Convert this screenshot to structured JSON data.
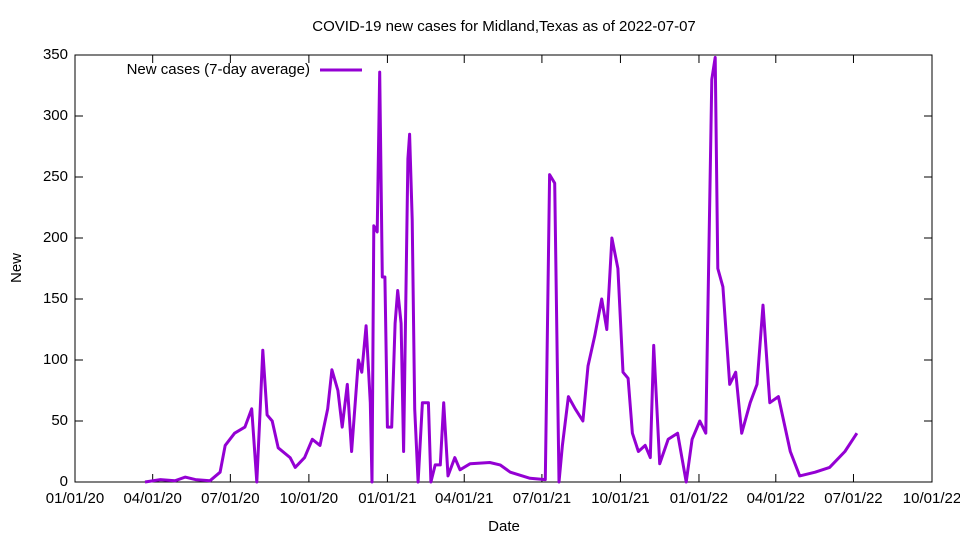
{
  "chart_data": {
    "type": "line",
    "title": "COVID-19 new cases for Midland,Texas as of 2022-07-07",
    "x_label": "Date",
    "y_label": "New",
    "legend_position": "top-left",
    "x": [
      "2020-03-23",
      "2020-04-10",
      "2020-04-27",
      "2020-05-09",
      "2020-05-21",
      "2020-06-07",
      "2020-06-19",
      "2020-06-25",
      "2020-07-06",
      "2020-07-18",
      "2020-07-26",
      "2020-08-01",
      "2020-08-05",
      "2020-08-08",
      "2020-08-13",
      "2020-08-19",
      "2020-08-26",
      "2020-09-09",
      "2020-09-15",
      "2020-09-26",
      "2020-10-05",
      "2020-10-14",
      "2020-10-23",
      "2020-10-28",
      "2020-11-04",
      "2020-11-09",
      "2020-11-15",
      "2020-11-20",
      "2020-11-28",
      "2020-12-02",
      "2020-12-07",
      "2020-12-12",
      "2020-12-14",
      "2020-12-16",
      "2020-12-20",
      "2020-12-23",
      "2020-12-26",
      "2020-12-29",
      "2021-01-01",
      "2021-01-06",
      "2021-01-10",
      "2021-01-13",
      "2021-01-17",
      "2021-01-20",
      "2021-01-25",
      "2021-01-27",
      "2021-01-30",
      "2021-02-02",
      "2021-02-06",
      "2021-02-11",
      "2021-02-18",
      "2021-02-21",
      "2021-02-26",
      "2021-03-04",
      "2021-03-08",
      "2021-03-13",
      "2021-03-21",
      "2021-03-27",
      "2021-04-08",
      "2021-05-01",
      "2021-05-13",
      "2021-05-25",
      "2021-06-17",
      "2021-07-05",
      "2021-07-10",
      "2021-07-16",
      "2021-07-21",
      "2021-07-25",
      "2021-08-01",
      "2021-08-09",
      "2021-08-18",
      "2021-08-24",
      "2021-09-01",
      "2021-09-09",
      "2021-09-15",
      "2021-09-21",
      "2021-09-28",
      "2021-10-04",
      "2021-10-10",
      "2021-10-15",
      "2021-10-22",
      "2021-10-30",
      "2021-11-05",
      "2021-11-09",
      "2021-11-16",
      "2021-11-26",
      "2021-12-07",
      "2021-12-17",
      "2021-12-24",
      "2022-01-02",
      "2022-01-09",
      "2022-01-16",
      "2022-01-20",
      "2022-01-23",
      "2022-01-29",
      "2022-02-06",
      "2022-02-13",
      "2022-02-20",
      "2022-03-02",
      "2022-03-10",
      "2022-03-17",
      "2022-03-25",
      "2022-04-04",
      "2022-04-18",
      "2022-04-29",
      "2022-05-17",
      "2022-06-03",
      "2022-06-21",
      "2022-07-05"
    ],
    "series": [
      {
        "name": "New cases (7-day average)",
        "color": "#9400d3",
        "values": [
          0,
          2,
          1,
          4,
          2,
          1,
          8,
          30,
          40,
          45,
          60,
          0,
          60,
          108,
          55,
          50,
          28,
          20,
          12,
          20,
          35,
          30,
          60,
          92,
          75,
          45,
          80,
          25,
          100,
          90,
          128,
          65,
          0,
          210,
          205,
          336,
          168,
          168,
          45,
          45,
          130,
          157,
          130,
          25,
          265,
          285,
          215,
          60,
          0,
          65,
          65,
          0,
          14,
          14,
          65,
          5,
          20,
          10,
          15,
          16,
          14,
          8,
          3,
          2,
          252,
          245,
          0,
          30,
          70,
          60,
          50,
          95,
          120,
          150,
          125,
          200,
          175,
          90,
          85,
          40,
          25,
          30,
          20,
          112,
          15,
          35,
          40,
          0,
          35,
          50,
          40,
          330,
          348,
          175,
          160,
          80,
          90,
          40,
          65,
          80,
          145,
          65,
          70,
          25,
          5,
          8,
          12,
          25,
          40
        ]
      }
    ],
    "xlim": [
      "2020-01-01",
      "2022-10-01"
    ],
    "xticks": [
      {
        "value": "2020-01-01",
        "label": "01/01/20"
      },
      {
        "value": "2020-04-01",
        "label": "04/01/20"
      },
      {
        "value": "2020-07-01",
        "label": "07/01/20"
      },
      {
        "value": "2020-10-01",
        "label": "10/01/20"
      },
      {
        "value": "2021-01-01",
        "label": "01/01/21"
      },
      {
        "value": "2021-04-01",
        "label": "04/01/21"
      },
      {
        "value": "2021-07-01",
        "label": "07/01/21"
      },
      {
        "value": "2021-10-01",
        "label": "10/01/21"
      },
      {
        "value": "2022-01-01",
        "label": "01/01/22"
      },
      {
        "value": "2022-04-01",
        "label": "04/01/22"
      },
      {
        "value": "2022-07-01",
        "label": "07/01/22"
      },
      {
        "value": "2022-10-01",
        "label": "10/01/22"
      }
    ],
    "ylim": [
      0,
      350
    ],
    "yticks": [
      0,
      50,
      100,
      150,
      200,
      250,
      300,
      350
    ]
  }
}
